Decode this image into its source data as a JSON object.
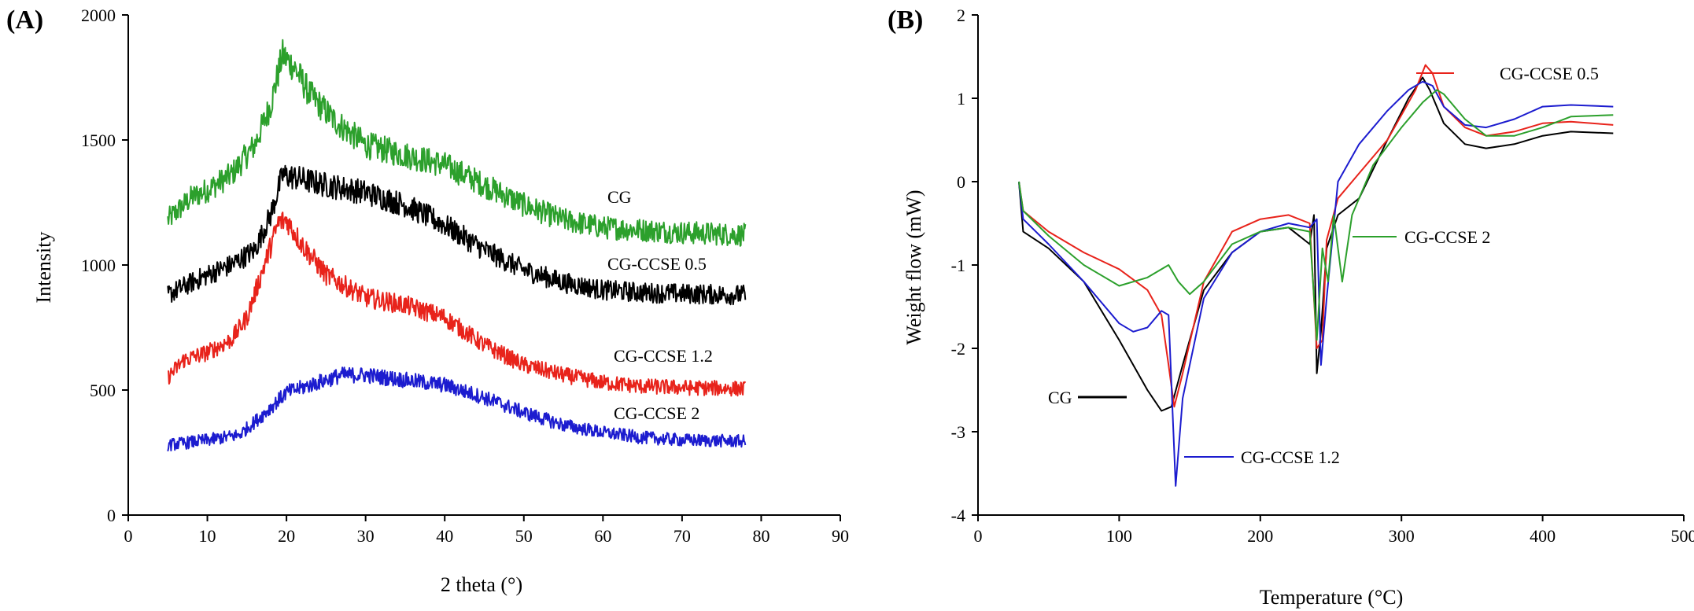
{
  "chart_data": [
    {
      "panel": "(A)",
      "type": "line",
      "title": "",
      "xlabel": "2 theta (°)",
      "ylabel": "Intensity",
      "xlim": [
        0,
        90
      ],
      "ylim": [
        0,
        2000
      ],
      "xticks": [
        0,
        10,
        20,
        30,
        40,
        50,
        60,
        70,
        80,
        90
      ],
      "yticks": [
        0,
        500,
        1000,
        1500,
        2000
      ],
      "grid": false,
      "legend": "inline labels",
      "series": [
        {
          "name": "CG",
          "color": "#2ca02c",
          "x": [
            5,
            8,
            10,
            13,
            16,
            18,
            19.5,
            21,
            23,
            26,
            30,
            35,
            40,
            45,
            50,
            55,
            60,
            65,
            70,
            78
          ],
          "y": [
            1180,
            1270,
            1300,
            1360,
            1480,
            1640,
            1840,
            1790,
            1680,
            1580,
            1480,
            1440,
            1400,
            1320,
            1240,
            1180,
            1150,
            1140,
            1130,
            1120
          ]
        },
        {
          "name": "CG-CCSE 0.5",
          "color": "#000000",
          "x": [
            5,
            8,
            10,
            13,
            16,
            18,
            19.5,
            21,
            25,
            30,
            35,
            40,
            45,
            50,
            55,
            60,
            65,
            70,
            78
          ],
          "y": [
            880,
            930,
            960,
            1000,
            1060,
            1200,
            1360,
            1350,
            1320,
            1290,
            1240,
            1160,
            1060,
            980,
            930,
            900,
            890,
            885,
            880
          ]
        },
        {
          "name": "CG-CCSE 1.2",
          "color": "#e8231b",
          "x": [
            5,
            7,
            10,
            13,
            15,
            17,
            19,
            20,
            22,
            25,
            30,
            35,
            40,
            45,
            50,
            55,
            60,
            65,
            70,
            78
          ],
          "y": [
            550,
            620,
            650,
            700,
            790,
            980,
            1170,
            1180,
            1080,
            960,
            870,
            840,
            790,
            680,
            600,
            560,
            530,
            515,
            510,
            505
          ]
        },
        {
          "name": "CG-CCSE 2",
          "color": "#1c1ccf",
          "x": [
            5,
            10,
            14,
            17,
            20,
            23,
            27,
            30,
            35,
            40,
            45,
            50,
            55,
            60,
            65,
            70,
            78
          ],
          "y": [
            280,
            300,
            320,
            400,
            490,
            520,
            560,
            560,
            540,
            520,
            470,
            410,
            360,
            330,
            310,
            300,
            295
          ]
        }
      ],
      "annotations": [
        "CG",
        "CG-CCSE 0.5",
        "CG-CCSE 1.2",
        "CG-CCSE 2"
      ]
    },
    {
      "panel": "(B)",
      "type": "line",
      "title": "",
      "xlabel": "Temperature (°C)",
      "ylabel": "Weight flow (mW)",
      "xlim": [
        0,
        500
      ],
      "ylim": [
        -4,
        2
      ],
      "xticks": [
        0,
        100,
        200,
        300,
        400,
        500
      ],
      "yticks": [
        -4,
        -3,
        -2,
        -1,
        0,
        1,
        2
      ],
      "grid": false,
      "legend": "inline labels",
      "series": [
        {
          "name": "CG",
          "color": "#000000",
          "x": [
            29,
            32,
            50,
            75,
            100,
            120,
            130,
            137,
            145,
            160,
            180,
            200,
            220,
            235,
            238,
            240,
            243,
            247,
            255,
            270,
            290,
            305,
            315,
            320,
            330,
            345,
            360,
            380,
            400,
            420,
            450
          ],
          "y": [
            0,
            -0.6,
            -0.8,
            -1.2,
            -1.9,
            -2.5,
            -2.75,
            -2.7,
            -2.2,
            -1.3,
            -0.85,
            -0.6,
            -0.55,
            -0.75,
            -0.4,
            -2.3,
            -1.8,
            -0.8,
            -0.4,
            -0.2,
            0.5,
            1.0,
            1.25,
            1.1,
            0.7,
            0.45,
            0.4,
            0.45,
            0.55,
            0.6,
            0.58
          ]
        },
        {
          "name": "CG-CCSE 0.5",
          "color": "#e8231b",
          "x": [
            29,
            32,
            50,
            75,
            100,
            120,
            130,
            135,
            139,
            145,
            160,
            180,
            200,
            220,
            235,
            240,
            244,
            247,
            255,
            270,
            290,
            300,
            310,
            317,
            322,
            330,
            345,
            360,
            380,
            400,
            420,
            450
          ],
          "y": [
            0,
            -0.35,
            -0.6,
            -0.85,
            -1.05,
            -1.3,
            -1.6,
            -2.2,
            -2.7,
            -2.3,
            -1.2,
            -0.6,
            -0.45,
            -0.4,
            -0.5,
            -2.0,
            -1.9,
            -0.7,
            -0.2,
            0.1,
            0.5,
            0.8,
            1.1,
            1.4,
            1.3,
            0.9,
            0.65,
            0.55,
            0.6,
            0.7,
            0.72,
            0.68
          ]
        },
        {
          "name": "CG-CCSE 1.2",
          "color": "#1c1ccf",
          "x": [
            29,
            32,
            50,
            75,
            100,
            110,
            120,
            130,
            135,
            140,
            145,
            160,
            180,
            200,
            220,
            235,
            240,
            243,
            247,
            255,
            270,
            290,
            305,
            315,
            322,
            330,
            345,
            360,
            380,
            400,
            420,
            450
          ],
          "y": [
            0,
            -0.45,
            -0.75,
            -1.2,
            -1.7,
            -1.8,
            -1.75,
            -1.55,
            -1.6,
            -3.65,
            -2.6,
            -1.4,
            -0.85,
            -0.6,
            -0.5,
            -0.55,
            -0.45,
            -2.2,
            -1.4,
            0.0,
            0.45,
            0.85,
            1.1,
            1.2,
            1.15,
            0.9,
            0.68,
            0.65,
            0.75,
            0.9,
            0.92,
            0.9
          ]
        },
        {
          "name": "CG-CCSE 2",
          "color": "#2ca02c",
          "x": [
            29,
            32,
            50,
            75,
            100,
            120,
            135,
            142,
            150,
            160,
            180,
            200,
            220,
            235,
            240,
            244,
            248,
            252,
            258,
            265,
            280,
            300,
            315,
            325,
            330,
            345,
            360,
            380,
            400,
            420,
            450
          ],
          "y": [
            0,
            -0.35,
            -0.65,
            -1.0,
            -1.25,
            -1.15,
            -1.0,
            -1.2,
            -1.35,
            -1.2,
            -0.75,
            -0.6,
            -0.55,
            -0.6,
            -1.9,
            -0.8,
            -1.2,
            -0.4,
            -1.2,
            -0.4,
            0.2,
            0.65,
            0.95,
            1.1,
            1.05,
            0.75,
            0.55,
            0.55,
            0.65,
            0.78,
            0.8
          ]
        }
      ],
      "annotations": [
        "CG-CCSE 0.5",
        "CG-CCSE 2",
        "CG",
        "CG-CCSE 1.2"
      ]
    }
  ]
}
